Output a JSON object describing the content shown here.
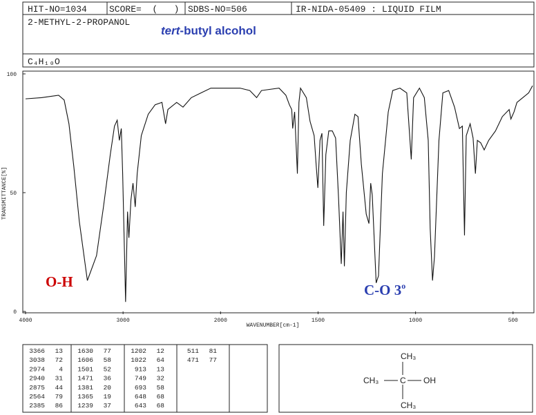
{
  "header": {
    "hit_no": "HIT-NO=1034",
    "score": "SCORE=  (   )",
    "sdbs_no": "SDBS-NO=506",
    "source": "IR-NIDA-05409 : LIQUID FILM",
    "name": "2-METHYL-2-PROPANOL",
    "formula": "C₄H₁₀O",
    "common_name": {
      "prefix": "tert",
      "rest": "-butyl alcohol"
    }
  },
  "chart_data": {
    "type": "line",
    "xlabel": "WAVENUMBER[cm-1]",
    "ylabel": "TRANSMITTANCE[%]",
    "color": "#111111",
    "x": [
      4000,
      3837,
      3661,
      3604,
      3555,
      3505,
      3449,
      3366,
      3272,
      3201,
      3131,
      3088,
      3060,
      3038,
      3018,
      3004,
      2974,
      2954,
      2940,
      2919,
      2898,
      2875,
      2855,
      2813,
      2742,
      2671,
      2601,
      2564,
      2540,
      2450,
      2385,
      2300,
      2200,
      2100,
      2000,
      1900,
      1850,
      1815,
      1790,
      1700,
      1665,
      1647,
      1635,
      1630,
      1620,
      1606,
      1598,
      1590,
      1560,
      1541,
      1520,
      1510,
      1501,
      1490,
      1480,
      1471,
      1460,
      1445,
      1427,
      1410,
      1395,
      1381,
      1372,
      1365,
      1355,
      1335,
      1311,
      1295,
      1278,
      1253,
      1239,
      1230,
      1222,
      1202,
      1190,
      1170,
      1140,
      1117,
      1080,
      1045,
      1022,
      1010,
      980,
      955,
      935,
      925,
      913,
      903,
      880,
      860,
      830,
      800,
      775,
      760,
      749,
      740,
      720,
      705,
      693,
      683,
      666,
      648,
      625,
      590,
      555,
      520,
      511,
      495,
      480,
      450,
      420,
      400
    ],
    "values": [
      89.5,
      90,
      91,
      89,
      79,
      61,
      38,
      13,
      23.5,
      44,
      66,
      78,
      80.5,
      72,
      77,
      58,
      4,
      42,
      31,
      47,
      54,
      44,
      58,
      74,
      83,
      87,
      88,
      79,
      85,
      88,
      86,
      90,
      92,
      94,
      94,
      94,
      93,
      90,
      93,
      94,
      91,
      87,
      85,
      77,
      84,
      58,
      88,
      94,
      90,
      80,
      74,
      62,
      52,
      72,
      75,
      36,
      66,
      76,
      76,
      73,
      48,
      20,
      42,
      19,
      50,
      72,
      83,
      82,
      62,
      41,
      37,
      54,
      49,
      12,
      15,
      58,
      84,
      93,
      94,
      92,
      64,
      90,
      94,
      90,
      72,
      35,
      13,
      23,
      72,
      92,
      93,
      86,
      77,
      78,
      32,
      74,
      79,
      73,
      58,
      72,
      71,
      68,
      72,
      76,
      82,
      85,
      81,
      84,
      88,
      90,
      92,
      95
    ],
    "xlim": [
      4000,
      400
    ],
    "ylim": [
      0,
      100
    ],
    "xticks": [
      4000,
      3000,
      2000,
      1500,
      1000,
      500
    ],
    "yticks": [
      0,
      50,
      100
    ],
    "grid": false,
    "annotations": [
      {
        "text": "O-H",
        "color": "#cc0000"
      },
      {
        "text": "C-O 3",
        "sup": "o",
        "color": "#2b3fb0"
      }
    ]
  },
  "peak_table": [
    [
      [
        3366,
        13
      ],
      [
        3038,
        72
      ],
      [
        2974,
        4
      ],
      [
        2940,
        31
      ],
      [
        2875,
        44
      ],
      [
        2564,
        79
      ],
      [
        2385,
        86
      ]
    ],
    [
      [
        1630,
        77
      ],
      [
        1606,
        58
      ],
      [
        1501,
        52
      ],
      [
        1471,
        36
      ],
      [
        1381,
        20
      ],
      [
        1365,
        19
      ],
      [
        1239,
        37
      ]
    ],
    [
      [
        1202,
        12
      ],
      [
        1022,
        64
      ],
      [
        913,
        13
      ],
      [
        749,
        32
      ],
      [
        693,
        58
      ],
      [
        648,
        68
      ],
      [
        643,
        68
      ]
    ],
    [
      [
        511,
        81
      ],
      [
        471,
        77
      ]
    ]
  ],
  "structure": {
    "top": "CH₃",
    "left": "CH₃",
    "center": "C",
    "right": "OH",
    "bottom": "CH₃"
  }
}
